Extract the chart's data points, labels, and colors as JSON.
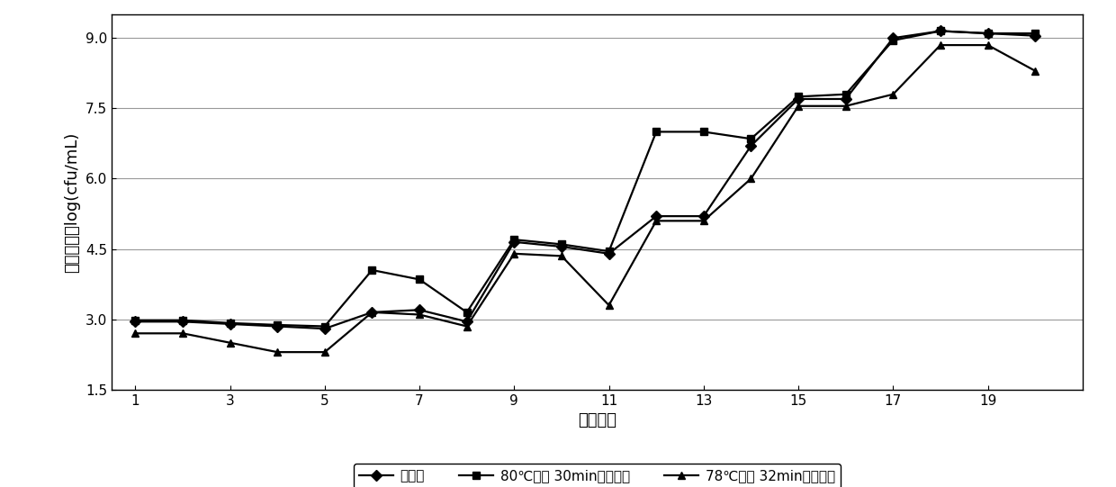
{
  "x": [
    1,
    2,
    3,
    4,
    5,
    6,
    7,
    8,
    9,
    10,
    11,
    12,
    13,
    14,
    15,
    16,
    17,
    18,
    19,
    20
  ],
  "series1_name": "添加量",
  "series1_y": [
    2.95,
    2.95,
    2.9,
    2.85,
    2.8,
    3.15,
    3.2,
    2.95,
    4.65,
    4.55,
    4.4,
    5.2,
    5.2,
    6.7,
    7.7,
    7.7,
    9.0,
    9.15,
    9.1,
    9.05
  ],
  "series2_name": "80℃水浴 30min检测结果",
  "series2_y": [
    2.98,
    2.98,
    2.92,
    2.88,
    2.85,
    4.05,
    3.85,
    3.15,
    4.7,
    4.6,
    4.45,
    7.0,
    7.0,
    6.85,
    7.75,
    7.8,
    8.95,
    9.15,
    9.1,
    9.1
  ],
  "series3_name": "78℃水浴 32min检测结果",
  "series3_y": [
    2.7,
    2.7,
    2.5,
    2.3,
    2.3,
    3.15,
    3.1,
    2.85,
    4.4,
    4.35,
    3.3,
    5.1,
    5.1,
    6.0,
    7.55,
    7.55,
    7.8,
    8.85,
    8.85,
    8.3
  ],
  "ylabel": "结果对数值log(cfu/mL)",
  "xlabel": "样品数量",
  "yticks": [
    1.5,
    3.0,
    4.5,
    6.0,
    7.5,
    9.0
  ],
  "xticks": [
    1,
    3,
    5,
    7,
    9,
    11,
    13,
    15,
    17,
    19
  ],
  "ylim": [
    1.5,
    9.5
  ],
  "xlim": [
    0.5,
    21
  ],
  "line_color": "#000000",
  "marker1": "D",
  "marker2": "s",
  "marker3": "^",
  "markersize": 6,
  "linewidth": 1.6,
  "background_color": "#ffffff",
  "grid_color": "#999999",
  "font_size_label": 13,
  "font_size_tick": 11,
  "font_size_legend": 11
}
